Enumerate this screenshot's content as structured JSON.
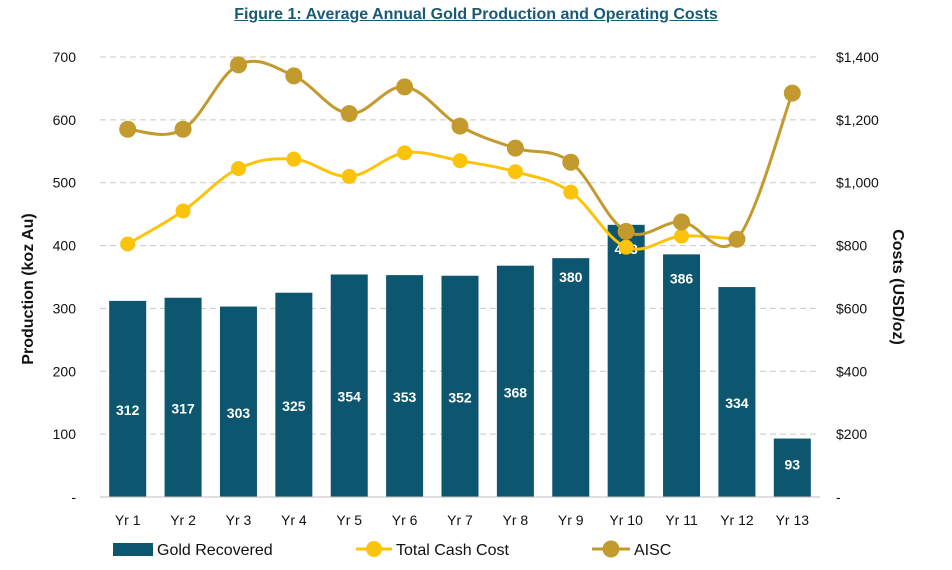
{
  "chart_data": {
    "type": "bar",
    "title": "Figure 1: Average Annual Gold Production and Operating Costs",
    "categories": [
      "Yr 1",
      "Yr 2",
      "Yr 3",
      "Yr 4",
      "Yr 5",
      "Yr 6",
      "Yr 7",
      "Yr 8",
      "Yr 9",
      "Yr 10",
      "Yr 11",
      "Yr 12",
      "Yr 13"
    ],
    "ylabel": "Production (koz Au)",
    "y2label": "Costs (USD/oz)",
    "ylim": [
      0,
      700
    ],
    "y2lim": [
      0,
      1400
    ],
    "yticks": [
      "-",
      "100",
      "200",
      "300",
      "400",
      "500",
      "600",
      "700"
    ],
    "y2ticks": [
      "-",
      "$200",
      "$400",
      "$600",
      "$800",
      "$1,000",
      "$1,200",
      "$1,400"
    ],
    "grid": true,
    "legend_position": "bottom",
    "series": [
      {
        "name": "Gold Recovered",
        "type": "bar",
        "axis": "left",
        "color": "#0c5670",
        "values": [
          312,
          317,
          303,
          325,
          354,
          353,
          352,
          368,
          380,
          433,
          386,
          334,
          93
        ],
        "labels": [
          "312",
          "317",
          "303",
          "325",
          "354",
          "353",
          "352",
          "368",
          "380",
          "433",
          "386",
          "334",
          "93"
        ]
      },
      {
        "name": "Total Cash Cost",
        "type": "line",
        "axis": "right",
        "color": "#fcc30b",
        "values": [
          805,
          910,
          1045,
          1075,
          1020,
          1095,
          1070,
          1035,
          970,
          795,
          830,
          820,
          null
        ]
      },
      {
        "name": "AISC",
        "type": "line",
        "axis": "right",
        "color": "#c39a2e",
        "values": [
          1170,
          1170,
          1375,
          1340,
          1220,
          1305,
          1180,
          1110,
          1065,
          845,
          875,
          820,
          1285
        ]
      }
    ]
  }
}
